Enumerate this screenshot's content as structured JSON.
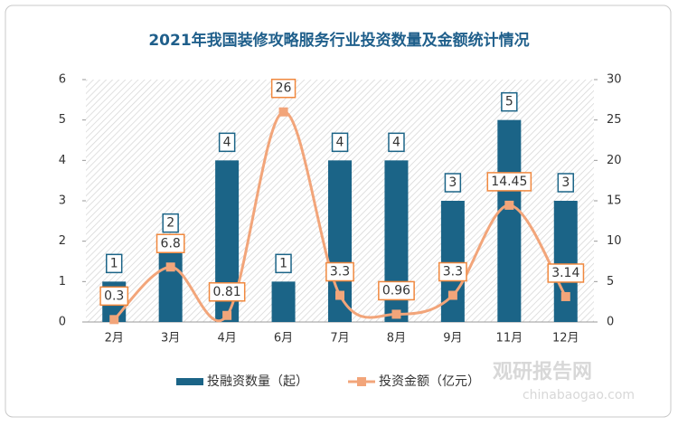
{
  "chart_data": {
    "type": "bar-line",
    "title": "2021年我国装修攻略服务行业投资数量及金额统计情况",
    "categories": [
      "2月",
      "3月",
      "4月",
      "6月",
      "7月",
      "8月",
      "9月",
      "11月",
      "12月"
    ],
    "series": [
      {
        "name": "投融资数量（起）",
        "type": "bar",
        "color": "#1b6487",
        "values": [
          1,
          2,
          4,
          1,
          4,
          4,
          3,
          5,
          3
        ]
      },
      {
        "name": "投资金额（亿元）",
        "type": "line",
        "axis": "y2",
        "color": "#f2a57a",
        "values": [
          0.3,
          6.8,
          0.81,
          26,
          3.3,
          0.96,
          3.3,
          14.45,
          3.14
        ]
      }
    ],
    "ylim": [
      0,
      6
    ],
    "yticks": [
      0,
      1,
      2,
      3,
      4,
      5,
      6
    ],
    "y2lim": [
      0,
      30
    ],
    "y2ticks": [
      0,
      5,
      10,
      15,
      20,
      25,
      30
    ],
    "watermark": "观研报告网",
    "watermark_url": "chinabaogao.com"
  }
}
